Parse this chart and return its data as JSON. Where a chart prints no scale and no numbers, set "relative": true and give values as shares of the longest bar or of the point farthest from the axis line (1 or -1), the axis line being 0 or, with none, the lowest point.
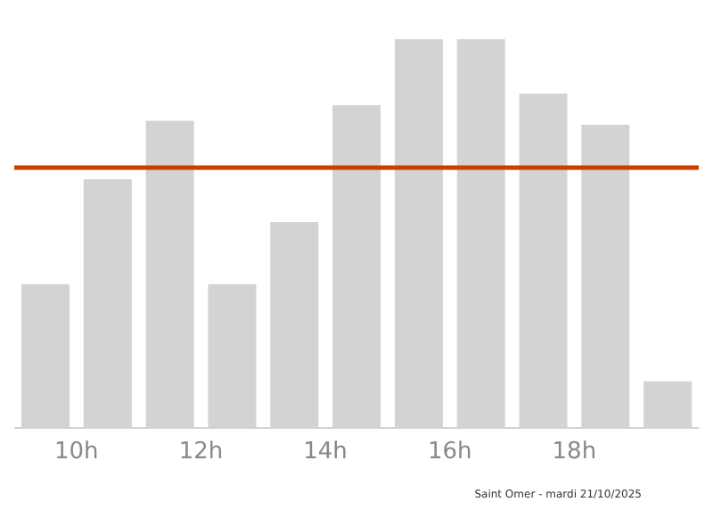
{
  "chart_data": {
    "type": "bar",
    "relative": true,
    "x": [
      9.5,
      10.5,
      11.5,
      12.5,
      13.5,
      14.5,
      15.5,
      16.5,
      17.5,
      18.5,
      19.5
    ],
    "values": [
      0.37,
      0.64,
      0.79,
      0.37,
      0.53,
      0.83,
      1,
      1,
      0.86,
      0.78,
      0.12
    ],
    "color": "#d3d3d3",
    "xlim": [
      9,
      20
    ],
    "xticks": [
      {
        "value": 10,
        "label": "10h"
      },
      {
        "value": 12,
        "label": "12h"
      },
      {
        "value": 14,
        "label": "14h"
      },
      {
        "value": 16,
        "label": "16h"
      },
      {
        "value": 18,
        "label": "18h"
      }
    ],
    "ref_lines": [
      {
        "axis": "y",
        "value": 0.67,
        "color": "#cc3d00"
      }
    ],
    "annotations": [
      "Saint Omer - mardi 21/10/2025"
    ],
    "grid": false
  }
}
